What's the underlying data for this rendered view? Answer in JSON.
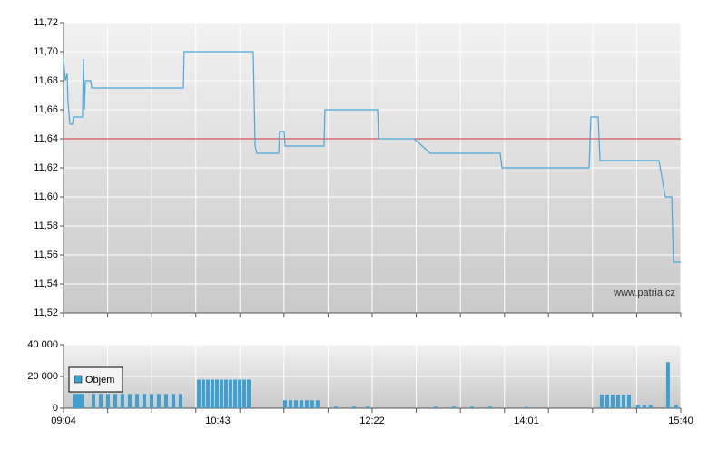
{
  "chart_data": [
    {
      "type": "line",
      "source": "www.patria.cz",
      "x": [
        544,
        545.2,
        546.3,
        546.9,
        548.1,
        549.8,
        550.4,
        556.2,
        556.8,
        557.4,
        558,
        561.5,
        562.1,
        620.9,
        621.4,
        665.7,
        666.9,
        668,
        682,
        682.6,
        685.5,
        686.1,
        711.1,
        711.7,
        745.5,
        746.1,
        768.9,
        779.3,
        824.1,
        825.3,
        881.2,
        882.3,
        887,
        888.2,
        926,
        930.1,
        934.2,
        935.3,
        940
      ],
      "series": [
        {
          "color": "#4aa8d8",
          "values": [
            11.695,
            11.68,
            11.685,
            11.665,
            11.65,
            11.65,
            11.655,
            11.655,
            11.695,
            11.66,
            11.68,
            11.68,
            11.675,
            11.675,
            11.7,
            11.7,
            11.635,
            11.63,
            11.63,
            11.645,
            11.645,
            11.635,
            11.635,
            11.66,
            11.66,
            11.64,
            11.64,
            11.63,
            11.63,
            11.62,
            11.62,
            11.655,
            11.655,
            11.625,
            11.625,
            11.6,
            11.6,
            11.555,
            11.555
          ]
        }
      ],
      "reference_line": {
        "value": 11.64,
        "color": "#d03030"
      },
      "xlim": [
        544,
        940
      ],
      "xgrid": [
        544,
        572.3,
        600.6,
        628.9,
        657.1,
        685.4,
        713.7,
        742,
        770.3,
        798.6,
        826.9,
        855.1,
        883.4,
        911.7,
        940
      ],
      "ylim": [
        11.52,
        11.72
      ],
      "yticks": [
        {
          "value": 11.52,
          "label": "11,52"
        },
        {
          "value": 11.54,
          "label": "11,54"
        },
        {
          "value": 11.56,
          "label": "11,56"
        },
        {
          "value": 11.58,
          "label": "11,58"
        },
        {
          "value": 11.6,
          "label": "11,60"
        },
        {
          "value": 11.62,
          "label": "11,62"
        },
        {
          "value": 11.64,
          "label": "11,64"
        },
        {
          "value": 11.66,
          "label": "11,66"
        },
        {
          "value": 11.68,
          "label": "11,68"
        },
        {
          "value": 11.7,
          "label": "11,70"
        },
        {
          "value": 11.72,
          "label": "11,72"
        }
      ],
      "grid": true
    },
    {
      "type": "bar",
      "x": [
        551,
        552.7,
        554.5,
        556.2,
        563.2,
        567.9,
        572.5,
        577.2,
        581.8,
        586.5,
        591.2,
        595.8,
        600.5,
        605.1,
        609.8,
        614.5,
        619.1,
        630.8,
        633.7,
        636.6,
        639.5,
        642.4,
        645.3,
        648.2,
        651.1,
        654.1,
        657,
        659.9,
        662.8,
        686.1,
        689.6,
        693.1,
        696.6,
        700.1,
        703.5,
        707,
        718.7,
        730.3,
        739.1,
        782.7,
        794.4,
        806,
        817.7,
        841,
        889.3,
        892.8,
        896.3,
        899.8,
        903.3,
        906.8,
        912.6,
        916.7,
        920.7,
        931.8,
        937
      ],
      "series": [
        {
          "name": "Objem",
          "color": "#3fa0d0",
          "values": [
            9000,
            9000,
            9000,
            9000,
            9000,
            9000,
            9000,
            9000,
            9000,
            9000,
            9000,
            9000,
            9000,
            9000,
            9000,
            9000,
            9000,
            18000,
            18000,
            18000,
            18000,
            18000,
            18000,
            18000,
            18000,
            18000,
            18000,
            18000,
            18000,
            5000,
            5000,
            5000,
            5000,
            5000,
            5000,
            5000,
            1000,
            1000,
            1000,
            1000,
            1000,
            1000,
            1000,
            800,
            8500,
            8500,
            8500,
            8500,
            8500,
            8500,
            2000,
            2000,
            2000,
            29000,
            2000
          ]
        }
      ],
      "xlim": [
        544,
        940
      ],
      "xticks": [
        {
          "value": 544,
          "label": "09:04"
        },
        {
          "value": 643,
          "label": "10:43"
        },
        {
          "value": 742,
          "label": "12:22"
        },
        {
          "value": 841,
          "label": "14:01"
        },
        {
          "value": 940,
          "label": "15:40"
        }
      ],
      "ylim": [
        0,
        40000
      ],
      "yticks": [
        0,
        {
          "value": 20000,
          "label": "20 000"
        },
        {
          "value": 40000,
          "label": "40 000"
        }
      ],
      "grid": true,
      "legend": "top-left"
    }
  ]
}
